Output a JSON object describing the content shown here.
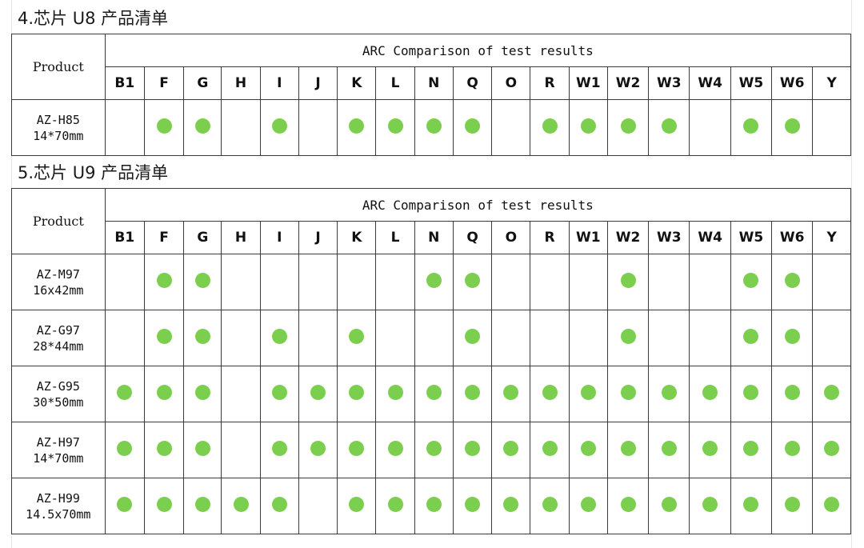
{
  "dot_color": "#7ccf4e",
  "columns": [
    "B1",
    "F",
    "G",
    "H",
    "I",
    "J",
    "K",
    "L",
    "N",
    "Q",
    "O",
    "R",
    "W1",
    "W2",
    "W3",
    "W4",
    "W5",
    "W6",
    "Y"
  ],
  "sections": [
    {
      "title": "4.芯片 U8 产品清单",
      "product_label": "Product",
      "caption": "ARC Comparison of test results",
      "rows": [
        {
          "model": "AZ-H85",
          "size": "14*70mm",
          "marks": [
            false,
            true,
            true,
            false,
            true,
            false,
            true,
            true,
            true,
            true,
            false,
            true,
            true,
            true,
            true,
            false,
            true,
            true,
            false
          ]
        }
      ]
    },
    {
      "title": "5.芯片 U9 产品清单",
      "product_label": "Product",
      "caption": "ARC Comparison of test results",
      "rows": [
        {
          "model": "AZ-M97",
          "size": "16x42mm",
          "marks": [
            false,
            true,
            true,
            false,
            false,
            false,
            false,
            false,
            true,
            true,
            false,
            false,
            false,
            true,
            false,
            false,
            true,
            true,
            false
          ]
        },
        {
          "model": "AZ-G97",
          "size": "28*44mm",
          "marks": [
            false,
            true,
            true,
            false,
            true,
            false,
            true,
            false,
            false,
            true,
            false,
            false,
            false,
            true,
            false,
            false,
            true,
            true,
            false
          ]
        },
        {
          "model": "AZ-G95",
          "size": "30*50mm",
          "marks": [
            true,
            true,
            true,
            false,
            true,
            true,
            true,
            true,
            true,
            true,
            true,
            true,
            true,
            true,
            true,
            true,
            true,
            true,
            true
          ]
        },
        {
          "model": "AZ-H97",
          "size": "14*70mm",
          "marks": [
            true,
            true,
            true,
            false,
            true,
            true,
            true,
            true,
            true,
            true,
            true,
            true,
            true,
            true,
            true,
            true,
            true,
            true,
            true
          ]
        },
        {
          "model": "AZ-H99",
          "size": "14.5x70mm",
          "marks": [
            true,
            true,
            true,
            true,
            true,
            false,
            true,
            true,
            true,
            true,
            true,
            true,
            true,
            true,
            true,
            true,
            true,
            true,
            true
          ]
        }
      ]
    }
  ]
}
